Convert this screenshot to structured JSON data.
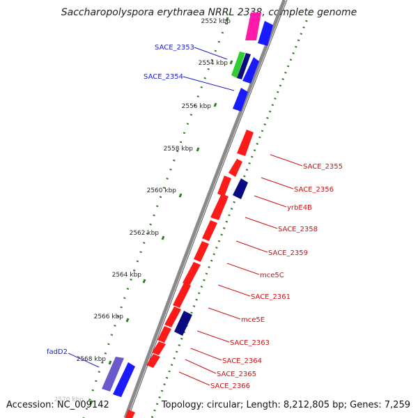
{
  "title": "Saccharopolyspora erythraea NRRL 2338, complete genome",
  "accession": "Accession: NC_009142",
  "topology": "Topology: circular; Length: 8,212,805 bp; Genes: 7,259",
  "colors": {
    "backbone": "#8a8a8a",
    "gc_ticks": "#2e7d1f",
    "forward_label": "#1a1acc",
    "reverse_label": "#cc1111",
    "gene_red": "#ff1a1a",
    "gene_blue": "#1a1aff",
    "gene_navy": "#0a0a80",
    "gene_magenta": "#ff1aaa",
    "gene_green": "#33cc33",
    "gene_purple": "#6a5acd"
  },
  "scale_labels": [
    "2552 kbp",
    "2554 kbp",
    "2556 kbp",
    "2558 kbp",
    "2560 kbp",
    "2562 kbp",
    "2564 kbp",
    "2566 kbp",
    "2568 kbp",
    "2570 kbp"
  ],
  "forward_genes": [
    {
      "label": "SACE_2353"
    },
    {
      "label": "SACE_2354"
    },
    {
      "label": "fadD2"
    }
  ],
  "reverse_genes": [
    {
      "label": "SACE_2355"
    },
    {
      "label": "SACE_2356"
    },
    {
      "label": "yrbE4B"
    },
    {
      "label": "SACE_2358"
    },
    {
      "label": "SACE_2359"
    },
    {
      "label": "mce5C"
    },
    {
      "label": "SACE_2361"
    },
    {
      "label": "mce5E"
    },
    {
      "label": "SACE_2363"
    },
    {
      "label": "SACE_2364"
    },
    {
      "label": "SACE_2365"
    },
    {
      "label": "SACE_2366"
    }
  ]
}
